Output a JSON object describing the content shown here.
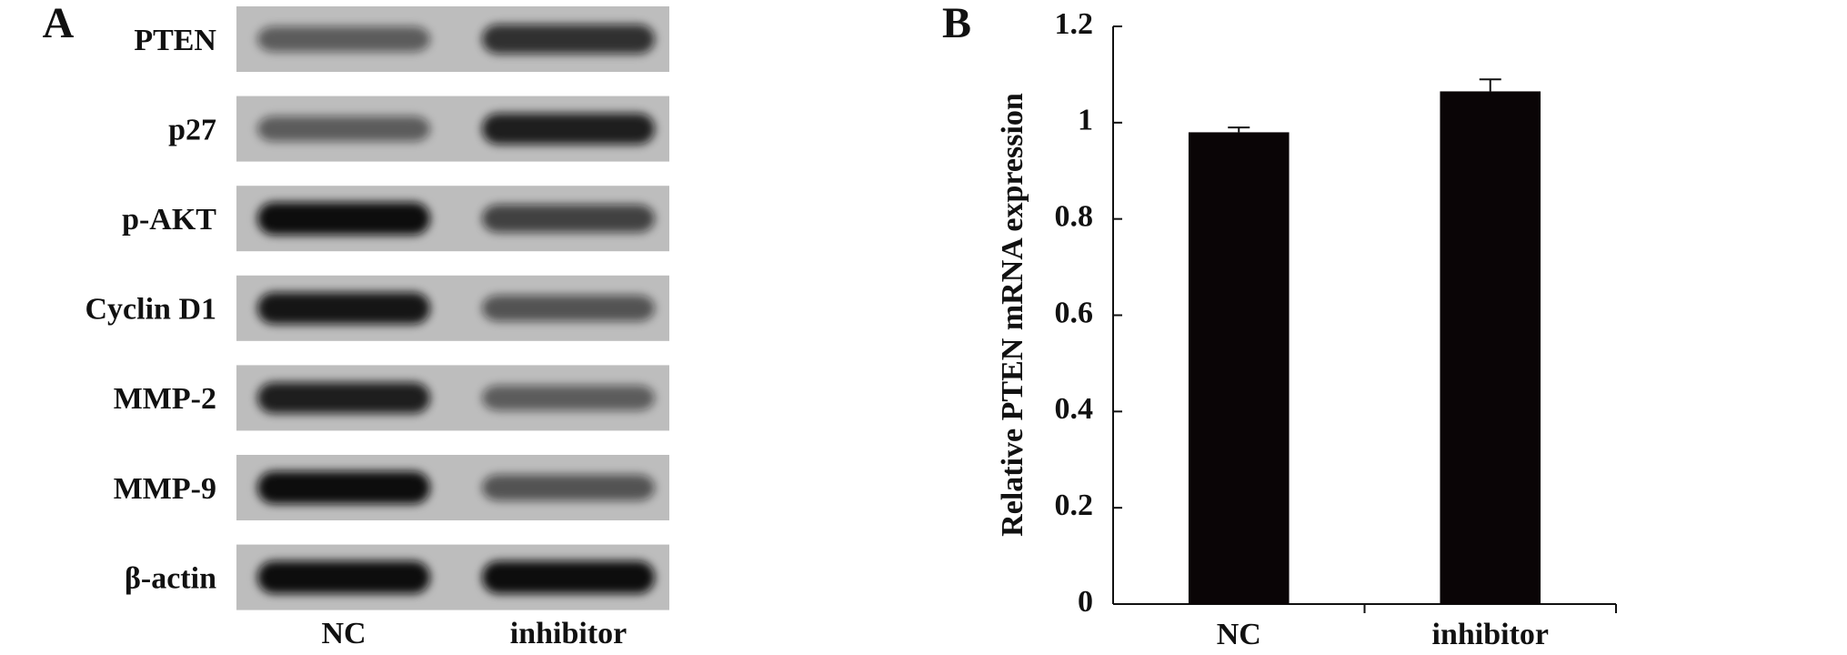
{
  "panel_a": {
    "label": "A",
    "rows": [
      "PTEN",
      "p27",
      "p-AKT",
      "Cyclin D1",
      "MMP-2",
      "MMP-9",
      "β-actin"
    ],
    "lanes": [
      "NC",
      "inhibitor"
    ]
  },
  "chart_data": {
    "type": "bar",
    "panel_label": "B",
    "y_label": "Relative PTEN mRNA expression",
    "categories": [
      "NC",
      "inhibitor"
    ],
    "values": [
      0.98,
      1.065
    ],
    "errors": [
      0.01,
      0.025
    ],
    "color": "#0a0506",
    "ylim": [
      0,
      1.2
    ],
    "yticks": [
      0,
      0.2,
      0.4,
      0.6,
      0.8,
      1,
      1.2
    ],
    "grid": false
  }
}
